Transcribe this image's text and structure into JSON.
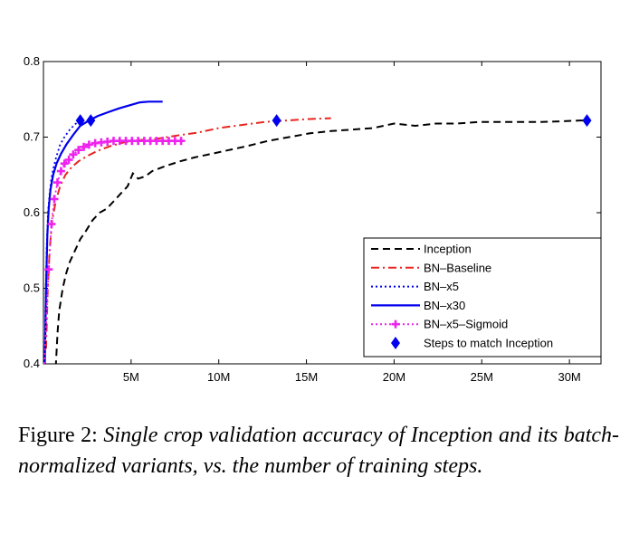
{
  "chart_data": {
    "type": "line",
    "title": "",
    "xlabel": "",
    "ylabel": "",
    "xlim": [
      0,
      31800000
    ],
    "ylim": [
      0.4,
      0.8
    ],
    "x_ticks": [
      5000000,
      10000000,
      15000000,
      20000000,
      25000000,
      30000000
    ],
    "x_tick_labels": [
      "5M",
      "10M",
      "15M",
      "20M",
      "25M",
      "30M"
    ],
    "y_ticks": [
      0.4,
      0.5,
      0.6,
      0.7,
      0.8
    ],
    "y_tick_labels": [
      "0.4",
      "0.5",
      "0.6",
      "0.7",
      "0.8"
    ],
    "legend_position": "bottom-right",
    "series": [
      {
        "name": "Inception",
        "color": "#000000",
        "style": "dashed",
        "x": [
          700000,
          800000,
          900000,
          1100000,
          1300000,
          1500000,
          1800000,
          2100000,
          2400000,
          2800000,
          3200000,
          3600000,
          4000000,
          4400000,
          4800000,
          5100000,
          5400000,
          5800000,
          6200000,
          7000000,
          7800000,
          8600000,
          9600000,
          10600000,
          11600000,
          12800000,
          14000000,
          15200000,
          16400000,
          17600000,
          18800000,
          20000000,
          21200000,
          22400000,
          23600000,
          24800000,
          26000000,
          27200000,
          28400000,
          29600000,
          30600000,
          31200000
        ],
        "y": [
          0.395,
          0.44,
          0.47,
          0.5,
          0.52,
          0.535,
          0.55,
          0.565,
          0.575,
          0.59,
          0.6,
          0.605,
          0.615,
          0.625,
          0.635,
          0.652,
          0.645,
          0.648,
          0.655,
          0.662,
          0.668,
          0.673,
          0.678,
          0.683,
          0.688,
          0.695,
          0.7,
          0.705,
          0.708,
          0.71,
          0.712,
          0.718,
          0.715,
          0.718,
          0.718,
          0.72,
          0.72,
          0.72,
          0.72,
          0.721,
          0.722,
          0.722
        ]
      },
      {
        "name": "BN–Baseline",
        "color": "#e8251f",
        "style": "dashdot",
        "x": [
          150000,
          250000,
          350000,
          500000,
          700000,
          950000,
          1250000,
          1600000,
          2000000,
          2500000,
          3100000,
          3800000,
          4600000,
          5500000,
          6500000,
          7600000,
          8800000,
          10000000,
          11300000,
          12600000,
          13900000,
          15200000,
          16400000
        ],
        "y": [
          0.42,
          0.5,
          0.55,
          0.59,
          0.615,
          0.635,
          0.65,
          0.66,
          0.668,
          0.675,
          0.682,
          0.688,
          0.693,
          0.696,
          0.698,
          0.702,
          0.706,
          0.712,
          0.716,
          0.72,
          0.722,
          0.724,
          0.725
        ]
      },
      {
        "name": "BN–x5",
        "color": "#0000ee",
        "style": "dotted",
        "x": [
          100000,
          180000,
          260000,
          350000,
          450000,
          580000,
          750000,
          950000,
          1200000,
          1500000,
          1800000,
          2100000
        ],
        "y": [
          0.45,
          0.55,
          0.6,
          0.625,
          0.645,
          0.66,
          0.675,
          0.69,
          0.7,
          0.71,
          0.717,
          0.722
        ]
      },
      {
        "name": "BN–x30",
        "color": "#0000ee",
        "style": "solid",
        "x": [
          80000,
          150000,
          220000,
          300000,
          400000,
          550000,
          750000,
          1000000,
          1300000,
          1700000,
          2100000,
          2600000,
          3100000,
          3700000,
          4300000,
          4900000,
          5500000,
          6000000,
          6500000,
          6800000
        ],
        "y": [
          0.4,
          0.5,
          0.57,
          0.605,
          0.63,
          0.65,
          0.665,
          0.678,
          0.69,
          0.703,
          0.715,
          0.722,
          0.728,
          0.733,
          0.738,
          0.742,
          0.746,
          0.747,
          0.747,
          0.747
        ],
        "line_width": 2.2
      },
      {
        "name": "BN–x5–Sigmoid",
        "color": "#ee22ee",
        "style": "dotted",
        "x": [
          40000,
          150000,
          300000,
          460000,
          620000,
          800000,
          1000000,
          1200000,
          1450000,
          1700000,
          2000000,
          2300000,
          2600000,
          2950000,
          3300000,
          3650000,
          4000000,
          4350000,
          4700000,
          5050000,
          5400000,
          5750000,
          6100000,
          6450000,
          6800000,
          7150000,
          7500000,
          7850000
        ],
        "y": [
          0.4,
          0.45,
          0.525,
          0.585,
          0.618,
          0.64,
          0.655,
          0.665,
          0.67,
          0.677,
          0.683,
          0.687,
          0.69,
          0.692,
          0.693,
          0.694,
          0.695,
          0.695,
          0.695,
          0.695,
          0.695,
          0.695,
          0.695,
          0.695,
          0.695,
          0.695,
          0.695,
          0.695
        ],
        "markers": "plus",
        "marker_from_index": 2
      }
    ],
    "match_points": {
      "name": "Steps to match Inception",
      "color": "#0000ee",
      "marker": "diamond",
      "x": [
        2100000,
        2700000,
        13300000,
        31000000
      ],
      "y": [
        0.722,
        0.722,
        0.722,
        0.722
      ]
    }
  },
  "caption": {
    "lead": "Figure 2:",
    "body": "Single crop validation accuracy of Inception and its batch-normalized variants, vs.  the number of training steps."
  }
}
